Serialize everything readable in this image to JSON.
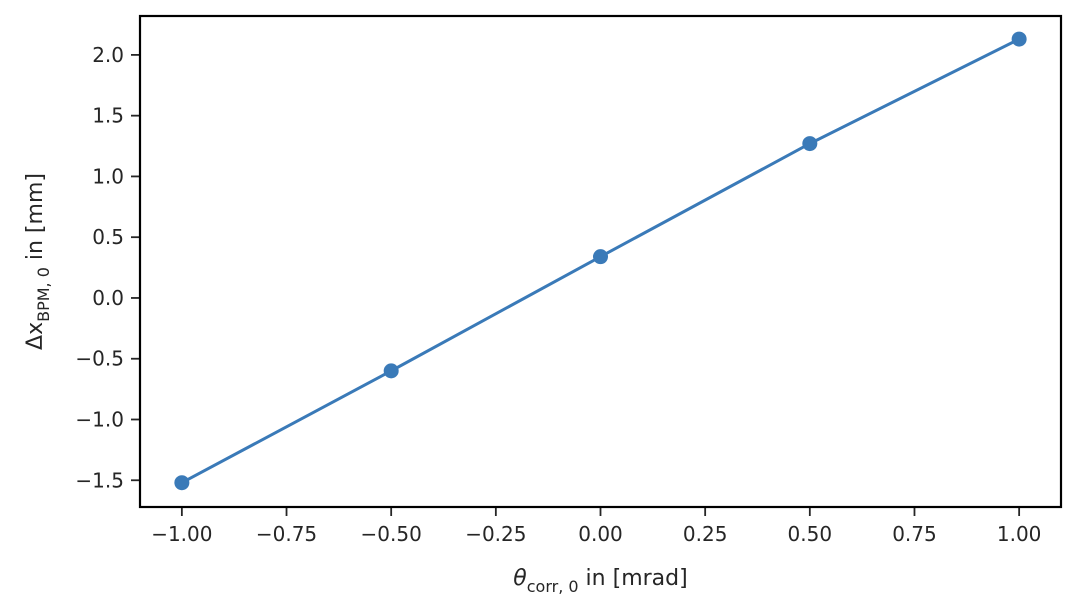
{
  "chart_data": {
    "type": "line",
    "title": "",
    "xlabel": {
      "symbol": "θ",
      "subscript": "corr, 0",
      "suffix": " in [mrad]"
    },
    "ylabel": {
      "symbol": "Δx",
      "subscript": "BPM, 0",
      "suffix": " in [mm]"
    },
    "xlim": [
      -1.1,
      1.1
    ],
    "ylim": [
      -1.72,
      2.32
    ],
    "xticks": [
      -1.0,
      -0.75,
      -0.5,
      -0.25,
      0.0,
      0.25,
      0.5,
      0.75,
      1.0
    ],
    "xtick_labels": [
      "−1.00",
      "−0.75",
      "−0.50",
      "−0.25",
      "0.00",
      "0.25",
      "0.50",
      "0.75",
      "1.00"
    ],
    "yticks": [
      -1.5,
      -1.0,
      -0.5,
      0.0,
      0.5,
      1.0,
      1.5,
      2.0
    ],
    "ytick_labels": [
      "−1.5",
      "−1.0",
      "−0.5",
      "0.0",
      "0.5",
      "1.0",
      "1.5",
      "2.0"
    ],
    "grid": false,
    "series": [
      {
        "color": "#3a7ab8",
        "marker": "circle",
        "x": [
          -1.0,
          -0.5,
          0.0,
          0.5,
          1.0
        ],
        "y": [
          -1.52,
          -0.6,
          0.34,
          1.27,
          2.13
        ]
      }
    ]
  }
}
